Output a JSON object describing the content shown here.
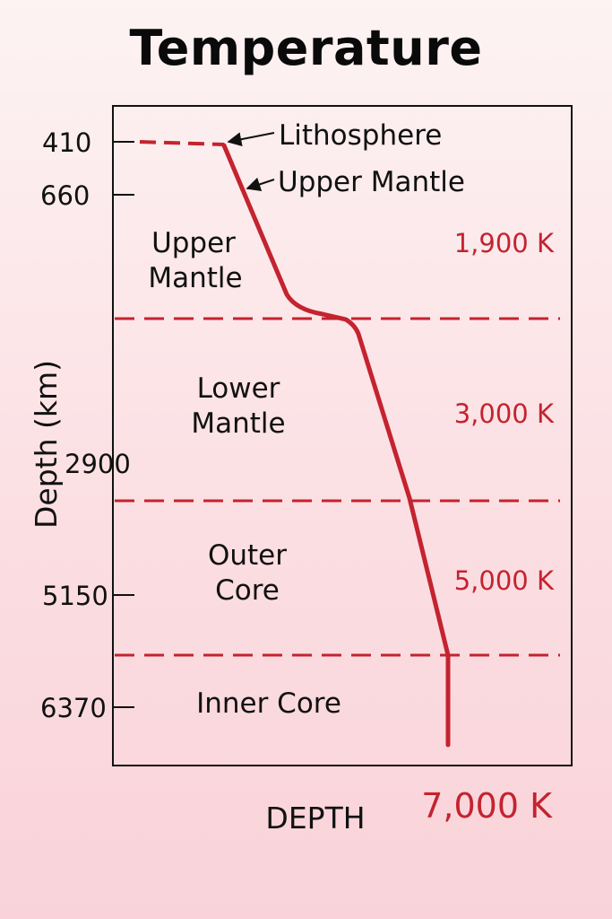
{
  "title": "Temperature",
  "y_axis_label": "Depth (km)",
  "x_axis_label": "DEPTH",
  "depth_ticks": [
    "410",
    "660",
    "2900",
    "5150",
    "6370"
  ],
  "layers": {
    "upper_mantle": [
      "Upper",
      "Mantle"
    ],
    "lower_mantle": [
      "Lower",
      "Mantle"
    ],
    "outer_core": [
      "Outer",
      "Core"
    ],
    "inner_core": [
      "Inner Core"
    ]
  },
  "temperatures": [
    "1,900 K",
    "3,000 K",
    "5,000 K",
    "7,000 K"
  ],
  "annotations": {
    "lithosphere": "Lithosphere",
    "upper_mantle": "Upper Mantle"
  },
  "colors": {
    "curve": "#c4232f",
    "boundary": "#c4232f",
    "text": "#111111"
  }
}
